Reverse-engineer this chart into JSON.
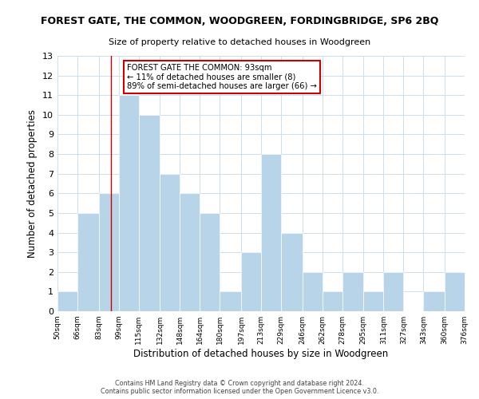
{
  "title": "FOREST GATE, THE COMMON, WOODGREEN, FORDINGBRIDGE, SP6 2BQ",
  "subtitle": "Size of property relative to detached houses in Woodgreen",
  "xlabel": "Distribution of detached houses by size in Woodgreen",
  "ylabel": "Number of detached properties",
  "bin_edges": [
    50,
    66,
    83,
    99,
    115,
    132,
    148,
    164,
    180,
    197,
    213,
    229,
    246,
    262,
    278,
    295,
    311,
    327,
    343,
    360,
    376
  ],
  "bar_heights": [
    1,
    5,
    6,
    11,
    10,
    7,
    6,
    5,
    1,
    3,
    8,
    4,
    2,
    1,
    2,
    1,
    2,
    0,
    1,
    2
  ],
  "bar_color": "#b8d4e8",
  "bar_edgecolor": "#ffffff",
  "ylim": [
    0,
    13
  ],
  "yticks": [
    0,
    1,
    2,
    3,
    4,
    5,
    6,
    7,
    8,
    9,
    10,
    11,
    12,
    13
  ],
  "vline_x": 93,
  "vline_color": "#cc0000",
  "annotation_text": "FOREST GATE THE COMMON: 93sqm\n← 11% of detached houses are smaller (8)\n89% of semi-detached houses are larger (66) →",
  "annotation_box_color": "#ffffff",
  "annotation_box_edgecolor": "#cc0000",
  "footnote1": "Contains HM Land Registry data © Crown copyright and database right 2024.",
  "footnote2": "Contains public sector information licensed under the Open Government Licence v3.0.",
  "background_color": "#ffffff",
  "grid_color": "#ccdded",
  "xlabels": [
    "50sqm",
    "66sqm",
    "83sqm",
    "99sqm",
    "115sqm",
    "132sqm",
    "148sqm",
    "164sqm",
    "180sqm",
    "197sqm",
    "213sqm",
    "229sqm",
    "246sqm",
    "262sqm",
    "278sqm",
    "295sqm",
    "311sqm",
    "327sqm",
    "343sqm",
    "360sqm",
    "376sqm"
  ]
}
